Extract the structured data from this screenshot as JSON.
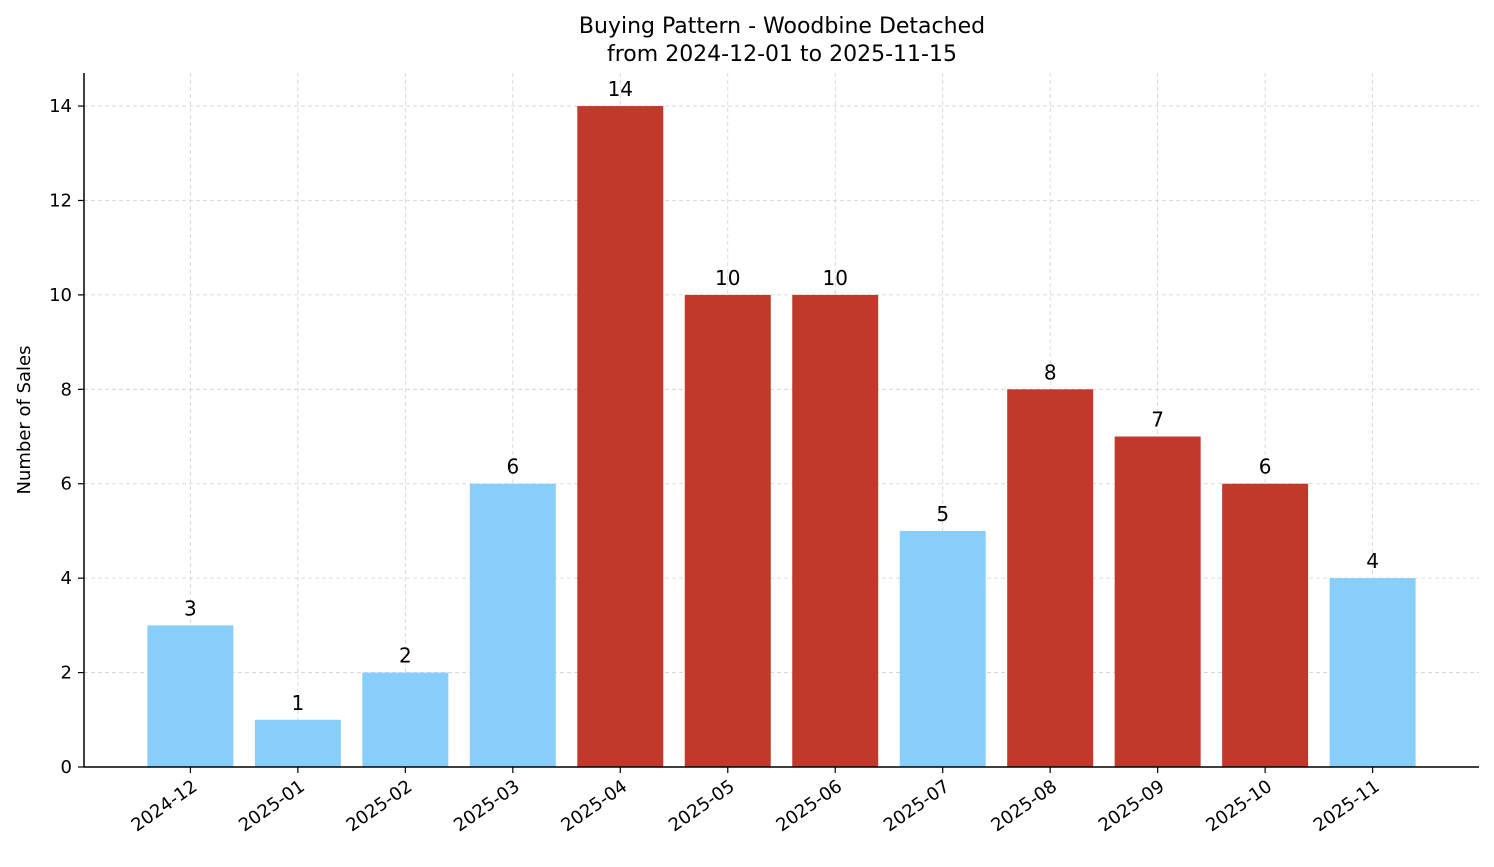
{
  "chart_data": {
    "type": "bar",
    "title": "Buying Pattern - Woodbine Detached",
    "subtitle": "from 2024-12-01 to 2025-11-15",
    "xlabel": "",
    "ylabel": "Number of Sales",
    "categories": [
      "2024-12",
      "2025-01",
      "2025-02",
      "2025-03",
      "2025-04",
      "2025-05",
      "2025-06",
      "2025-07",
      "2025-08",
      "2025-09",
      "2025-10",
      "2025-11"
    ],
    "values": [
      3,
      1,
      2,
      6,
      14,
      10,
      10,
      5,
      8,
      7,
      6,
      4
    ],
    "bar_colors": [
      "#87CEFA",
      "#87CEFA",
      "#87CEFA",
      "#87CEFA",
      "#C0392B",
      "#C0392B",
      "#C0392B",
      "#87CEFA",
      "#C0392B",
      "#C0392B",
      "#C0392B",
      "#87CEFA"
    ],
    "yticks": [
      0,
      2,
      4,
      6,
      8,
      10,
      12,
      14
    ],
    "ylim": [
      0,
      14.7
    ],
    "grid": true,
    "data_labels": true
  }
}
